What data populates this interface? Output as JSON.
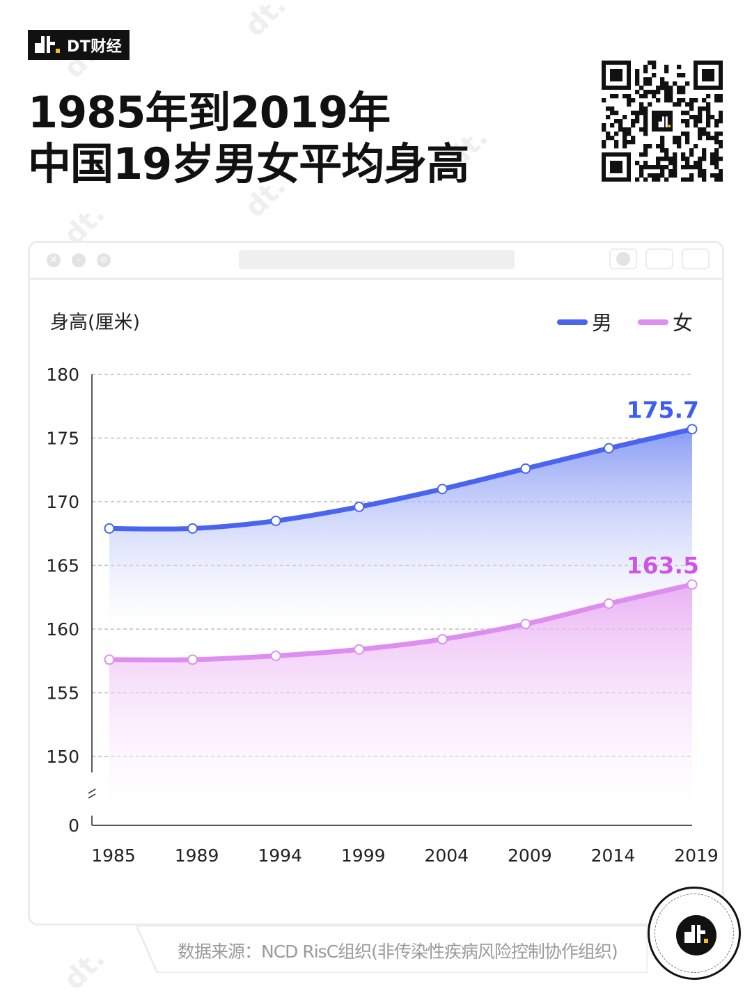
{
  "brand": {
    "name": "DT财经",
    "logo_icon": "dt-logo-icon"
  },
  "title": {
    "line1": "1985年到2019年",
    "line2": "中国19岁男女平均身高"
  },
  "qr_icon": "qr-code-icon",
  "source": "数据来源：NCD RisC组织(非传染性疾病风险控制协作组织)",
  "colors": {
    "male": "#4a64f0",
    "female": "#dd8ef0",
    "male_label": "#3d5cf5",
    "female_label": "#cc55e8"
  },
  "chart_data": {
    "type": "area",
    "title": "",
    "ylabel": "身高(厘米)",
    "xlabel": "",
    "x": [
      "1985",
      "1989",
      "1994",
      "1999",
      "2004",
      "2009",
      "2014",
      "2019"
    ],
    "yticks": [
      "180",
      "175",
      "170",
      "165",
      "160",
      "155",
      "150",
      "0"
    ],
    "ylim": [
      150,
      180
    ],
    "y_axis_break": true,
    "grid": true,
    "legend_position": "top-right",
    "series": [
      {
        "name": "男",
        "values": [
          167.9,
          167.9,
          168.5,
          169.6,
          171.0,
          172.6,
          174.2,
          175.7
        ],
        "end_label": "175.7"
      },
      {
        "name": "女",
        "values": [
          157.6,
          157.6,
          157.9,
          158.4,
          159.2,
          160.4,
          162.0,
          163.5
        ],
        "end_label": "163.5"
      }
    ]
  }
}
